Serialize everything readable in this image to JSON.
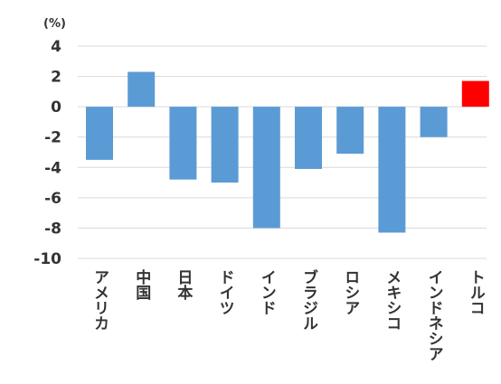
{
  "chart_data": {
    "type": "bar",
    "unit_label": "(%)",
    "categories": [
      "アメリカ",
      "中国",
      "日本",
      "ドイツ",
      "インド",
      "ブラジル",
      "ロシア",
      "メキシコ",
      "インドネシア",
      "トルコ"
    ],
    "values": [
      -3.5,
      2.3,
      -4.8,
      -5.0,
      -8.0,
      -4.1,
      -3.1,
      -8.3,
      -2.0,
      1.7
    ],
    "bar_colors": [
      "#5b9bd5",
      "#5b9bd5",
      "#5b9bd5",
      "#5b9bd5",
      "#5b9bd5",
      "#5b9bd5",
      "#5b9bd5",
      "#5b9bd5",
      "#5b9bd5",
      "#ff0000"
    ],
    "ylim": [
      -10,
      4
    ],
    "yticks": [
      4,
      2,
      0,
      -2,
      -4,
      -6,
      -8,
      -10
    ],
    "grid": true,
    "legend": "none"
  }
}
